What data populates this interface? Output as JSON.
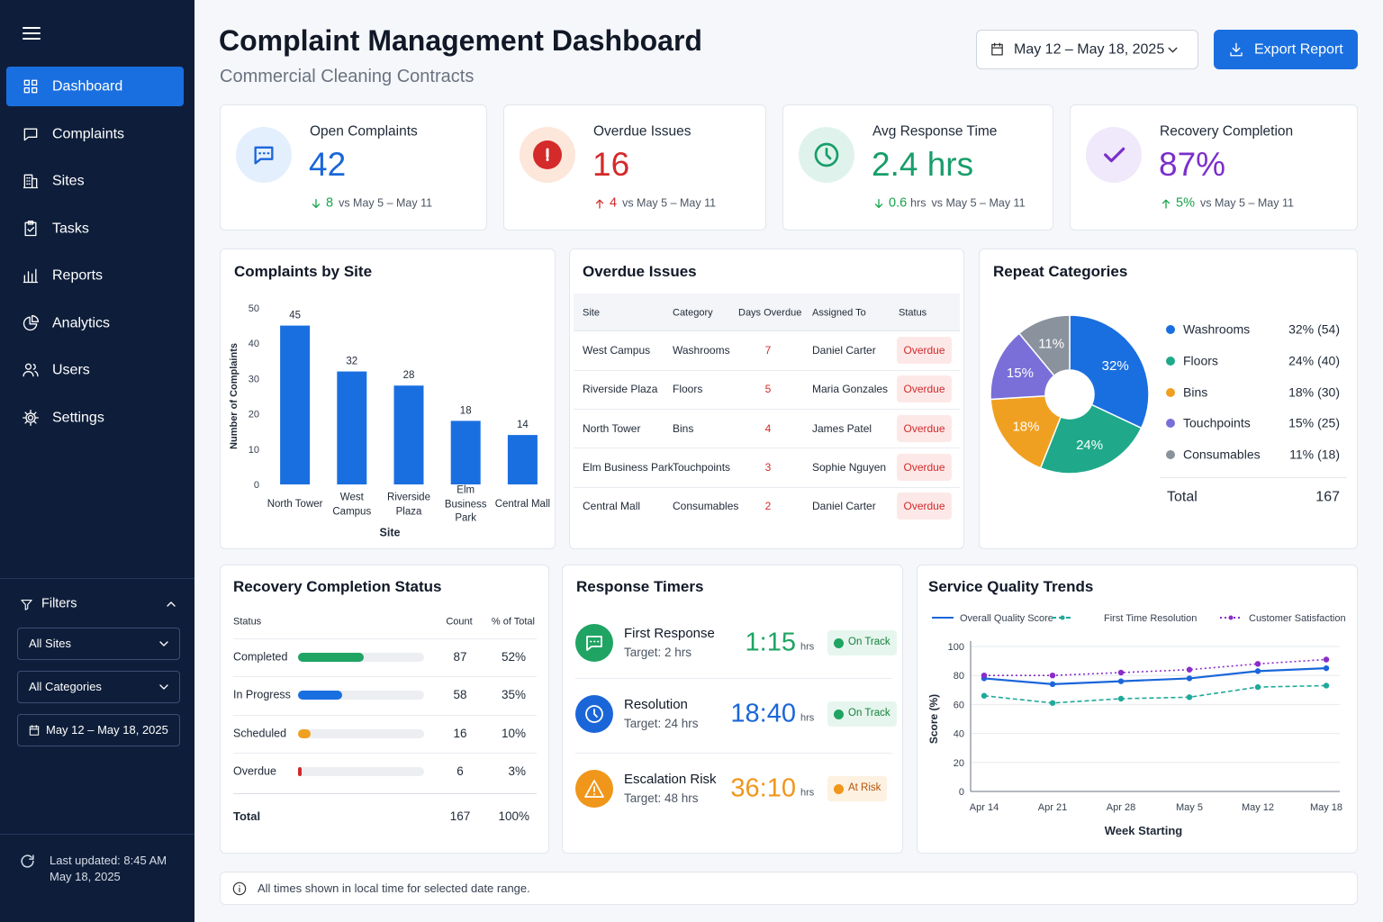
{
  "sidebar": {
    "nav": [
      "Dashboard",
      "Complaints",
      "Sites",
      "Tasks",
      "Reports",
      "Analytics",
      "Users",
      "Settings"
    ],
    "filters": {
      "title": "Filters",
      "options": [
        "All Sites",
        "All Categories"
      ],
      "date": "May 12 – May 18, 2025"
    },
    "last_updated": [
      "Last updated: 8:45 AM",
      "May 18, 2025"
    ]
  },
  "header": {
    "title": "Complaint Management Dashboard",
    "subtitle": "Commercial Cleaning Contracts",
    "date_range": "May 12 – May 18, 2025",
    "export": "Export Report"
  },
  "kpis": [
    {
      "label": "Open Complaints",
      "value": 42,
      "value_color": "#1a66d9",
      "change": 8,
      "direction": "down",
      "change_color": "#16a34a",
      "comparison": "vs May 5 – May 11"
    },
    {
      "label": "Overdue Issues",
      "value": 16,
      "value_color": "#d42a2a",
      "change": 4,
      "direction": "up",
      "change_color": "#d42a2a",
      "comparison": "vs May 5 – May 11"
    },
    {
      "label": "Avg Response Time",
      "value": "2.4 hrs",
      "value_color": "#179e6a",
      "change": 0.6,
      "change_unit": "hrs",
      "direction": "down",
      "change_color": "#16a34a",
      "comparison": "vs May 5 – May 11"
    },
    {
      "label": "Recovery Completion",
      "value": "87%",
      "value_color": "#7b2fc9",
      "change": "5%",
      "direction": "up",
      "change_color": "#16a34a",
      "comparison": "vs May 5 – May 11"
    }
  ],
  "chart_data": [
    {
      "type": "bar",
      "title": "Complaints by Site",
      "categories": [
        "North Tower",
        "West Campus",
        "Riverside Plaza",
        "Elm Business Park",
        "Central Mall"
      ],
      "values": [
        45,
        32,
        28,
        18,
        14
      ],
      "color": "#1a6fe0",
      "ylim": [
        0,
        50
      ],
      "yticks": [
        0,
        10,
        20,
        30,
        40,
        50
      ],
      "ylabel": "Number of Complaints",
      "xlabel": "Site",
      "grid": false
    },
    {
      "type": "pie",
      "title": "Repeat Categories",
      "donut": true,
      "categories": [
        "Washrooms",
        "Floors",
        "Bins",
        "Touchpoints",
        "Consumables"
      ],
      "values": [
        32,
        24,
        18,
        15,
        11
      ],
      "value_labels": [
        "32%",
        "24%",
        "18%",
        "15%",
        "11%"
      ],
      "counts": [
        54,
        40,
        30,
        25,
        18
      ],
      "count_labels": [
        "(54)",
        "(40)",
        "(30)",
        "(25)",
        "(18)"
      ],
      "colors": [
        "#1a6fe0",
        "#1fa98a",
        "#f0a020",
        "#7a6fd8",
        "#8a929e"
      ],
      "total_label": "Total",
      "total": 167
    },
    {
      "type": "line",
      "title": "Service Quality Trends",
      "categories": [
        "Apr 14",
        "Apr 21",
        "Apr 28",
        "May 5",
        "May 12",
        "May 18"
      ],
      "series": [
        {
          "name": "Overall Quality Score",
          "color": "#1a66d9",
          "dash": "solid",
          "values": [
            78,
            74,
            76,
            78,
            83,
            85
          ]
        },
        {
          "name": "First Time Resolution",
          "color": "#1fa99a",
          "dash": "dashed",
          "values": [
            66,
            61,
            64,
            65,
            72,
            73
          ]
        },
        {
          "name": "Customer Satisfaction",
          "color": "#8a2dc9",
          "dash": "dotted",
          "values": [
            80,
            80,
            82,
            84,
            88,
            91
          ]
        }
      ],
      "ylim": [
        0,
        100
      ],
      "yticks": [
        0,
        20,
        40,
        60,
        80,
        100
      ],
      "ylabel": "Score (%)",
      "xlabel": "Week Starting",
      "grid": true,
      "legend": "top"
    }
  ],
  "overdue": {
    "title": "Overdue Issues",
    "columns": [
      "Site",
      "Category",
      "Days Overdue",
      "Assigned To",
      "Status"
    ],
    "rows": [
      [
        "West Campus",
        "Washrooms",
        7,
        "Daniel Carter",
        "Overdue"
      ],
      [
        "Riverside Plaza",
        "Floors",
        5,
        "Maria Gonzales",
        "Overdue"
      ],
      [
        "North Tower",
        "Bins",
        4,
        "James Patel",
        "Overdue"
      ],
      [
        "Elm Business Park",
        "Touchpoints",
        3,
        "Sophie Nguyen",
        "Overdue"
      ],
      [
        "Central Mall",
        "Consumables",
        2,
        "Daniel Carter",
        "Overdue"
      ]
    ]
  },
  "recovery": {
    "title": "Recovery Completion Status",
    "columns": [
      "Status",
      "Count",
      "% of Total"
    ],
    "rows": [
      {
        "status": "Completed",
        "count": 87,
        "percent": 52,
        "percent_label": "52%",
        "color": "#1fa463"
      },
      {
        "status": "In Progress",
        "count": 58,
        "percent": 35,
        "percent_label": "35%",
        "color": "#1a6fe0"
      },
      {
        "status": "Scheduled",
        "count": 16,
        "percent": 10,
        "percent_label": "10%",
        "color": "#f0a020"
      },
      {
        "status": "Overdue",
        "count": 6,
        "percent": 3,
        "percent_label": "3%",
        "color": "#d42a2a"
      }
    ],
    "total": [
      "Total",
      167,
      "100%"
    ]
  },
  "timers": {
    "title": "Response Timers",
    "items": [
      {
        "name": "First Response",
        "target": "Target: 2 hrs",
        "time": "1:15",
        "unit": "hrs",
        "status": "On Track",
        "color": "#1fa463"
      },
      {
        "name": "Resolution",
        "target": "Target: 24 hrs",
        "time": "18:40",
        "unit": "hrs",
        "status": "On Track",
        "color": "#1a66d9"
      },
      {
        "name": "Escalation Risk",
        "target": "Target: 48 hrs",
        "time": "36:10",
        "unit": "hrs",
        "status": "At Risk",
        "color": "#f0961a"
      }
    ]
  },
  "footer": "All times shown in local time for selected date range."
}
